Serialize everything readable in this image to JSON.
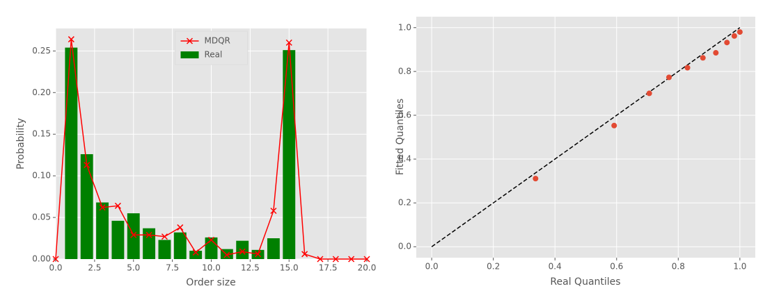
{
  "chart_data": [
    {
      "type": "bar",
      "xlabel": "Order size",
      "ylabel": "Probability",
      "xlim": [
        0,
        20
      ],
      "ylim": [
        0,
        0.277
      ],
      "xticks": [
        {
          "value": 0,
          "label": "0.0"
        },
        2.5,
        {
          "value": 5,
          "label": "5.0"
        },
        7.5,
        {
          "value": 10,
          "label": "10.0"
        },
        12.5,
        {
          "value": 15,
          "label": "15.0"
        },
        17.5,
        {
          "value": 20,
          "label": "20.0"
        }
      ],
      "yticks": [
        {
          "value": 0,
          "label": "0.00"
        },
        0.05,
        {
          "value": 0.1,
          "label": "0.10"
        },
        0.15,
        {
          "value": 0.2,
          "label": "0.20"
        },
        0.25
      ],
      "grid": true,
      "legend": "upper center",
      "series": [
        {
          "name": "MDQR",
          "type": "line",
          "marker": "x",
          "color": "#ff0000",
          "x": [
            0,
            1,
            2,
            3,
            4,
            5,
            6,
            7,
            8,
            9,
            10,
            11,
            12,
            13,
            14,
            15,
            16,
            17,
            18,
            19,
            20
          ],
          "values": [
            0.0,
            0.264,
            0.113,
            0.062,
            0.064,
            0.029,
            0.029,
            0.027,
            0.038,
            0.008,
            0.023,
            0.005,
            0.009,
            0.006,
            0.058,
            0.26,
            0.006,
            0.0,
            0.0,
            0.0,
            0.0
          ]
        },
        {
          "name": "Real",
          "type": "bar",
          "color": "#008000",
          "x": [
            1,
            2,
            3,
            4,
            5,
            6,
            7,
            8,
            9,
            10,
            11,
            12,
            13,
            14,
            15
          ],
          "values": [
            0.254,
            0.126,
            0.068,
            0.046,
            0.055,
            0.037,
            0.023,
            0.032,
            0.01,
            0.026,
            0.012,
            0.022,
            0.011,
            0.025,
            0.251
          ]
        }
      ]
    },
    {
      "type": "scatter",
      "xlabel": "Real Quantiles",
      "ylabel": "Fitted Quantiles",
      "xlim": [
        -0.05,
        1.05
      ],
      "ylim": [
        -0.05,
        1.05
      ],
      "xticks": [
        {
          "value": 0,
          "label": "0.0"
        },
        0.2,
        0.4,
        0.6,
        0.8,
        {
          "value": 1,
          "label": "1.0"
        }
      ],
      "yticks": [
        {
          "value": 0,
          "label": "0.0"
        },
        0.2,
        0.4,
        0.6,
        0.8,
        {
          "value": 1,
          "label": "1.0"
        }
      ],
      "grid": true,
      "series": [
        {
          "type": "line",
          "linestyle": "dashed",
          "color": "#000000",
          "x": [
            0,
            1
          ],
          "values": [
            0,
            1
          ]
        },
        {
          "type": "scatter",
          "color": "#e24a33",
          "x": [
            0.337,
            0.592,
            0.706,
            0.77,
            0.83,
            0.88,
            0.922,
            0.958,
            0.982,
            1.0
          ],
          "values": [
            0.311,
            0.553,
            0.7,
            0.773,
            0.817,
            0.862,
            0.885,
            0.932,
            0.962,
            0.98
          ]
        }
      ]
    }
  ]
}
